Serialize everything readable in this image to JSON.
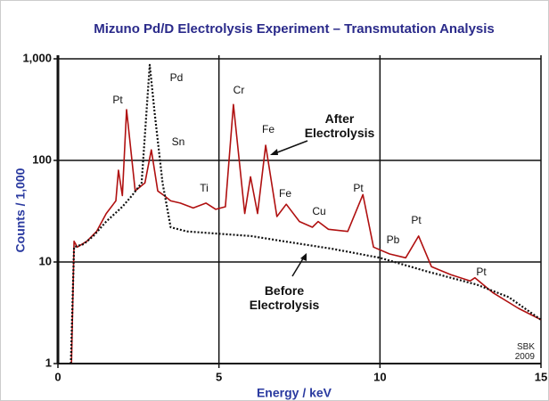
{
  "chart_data": {
    "type": "line",
    "title": "Mizuno Pd/D Electrolysis Experiment – Transmutation Analysis",
    "xlabel": "Energy / keV",
    "ylabel": "Counts / 1,000",
    "log_y": true,
    "grid": true,
    "xlim": [
      0,
      15
    ],
    "xticks": [
      0,
      5,
      10,
      15
    ],
    "ylim": [
      1,
      1000
    ],
    "yticks": [
      1,
      10,
      100,
      {
        "value": 1000,
        "label": "1,000"
      }
    ],
    "series": [
      {
        "name": "After Electrolysis",
        "color": "#b01010",
        "style": "solid",
        "x": [
          0.42,
          0.5,
          0.6,
          0.9,
          1.2,
          1.5,
          1.8,
          1.88,
          2.0,
          2.13,
          2.4,
          2.7,
          2.9,
          3.1,
          3.3,
          3.5,
          3.8,
          4.2,
          4.6,
          4.9,
          5.2,
          5.45,
          5.8,
          5.98,
          6.2,
          6.45,
          6.8,
          7.09,
          7.5,
          7.9,
          8.08,
          8.4,
          9.0,
          9.47,
          9.8,
          10.3,
          10.8,
          11.2,
          11.6,
          12.2,
          12.8,
          12.95,
          13.5,
          14.3,
          15
        ],
        "values": [
          1,
          16,
          14,
          16,
          20,
          30,
          40,
          80,
          45,
          316,
          50,
          60,
          127,
          50,
          45,
          40,
          38,
          34,
          38,
          33,
          35,
          355,
          30,
          69,
          30,
          141,
          28,
          37,
          25,
          22,
          25,
          21,
          20,
          46,
          14,
          12,
          11,
          18,
          9,
          7.5,
          6.5,
          7,
          5,
          3.5,
          2.7
        ]
      },
      {
        "name": "Before Electrolysis",
        "color": "#111111",
        "style": "dotted",
        "x": [
          0.4,
          0.5,
          0.8,
          1.1,
          1.5,
          2.0,
          2.3,
          2.6,
          2.85,
          3.0,
          3.25,
          3.5,
          4.0,
          6.0,
          7.0,
          8.5,
          10.0,
          11.5,
          13.0,
          14.0,
          15
        ],
        "values": [
          1,
          14,
          15,
          18,
          25,
          35,
          45,
          60,
          870,
          300,
          60,
          22,
          20,
          18,
          16,
          13.5,
          11,
          8,
          6,
          4.5,
          2.7
        ]
      }
    ],
    "annotations": [
      "Pt",
      "Pd",
      "Sn",
      "Cr",
      "Fe",
      "Ti",
      "Fe",
      "Cu",
      "Pt",
      "Pb",
      "Pt",
      "Pt",
      "SBK 2009"
    ]
  }
}
